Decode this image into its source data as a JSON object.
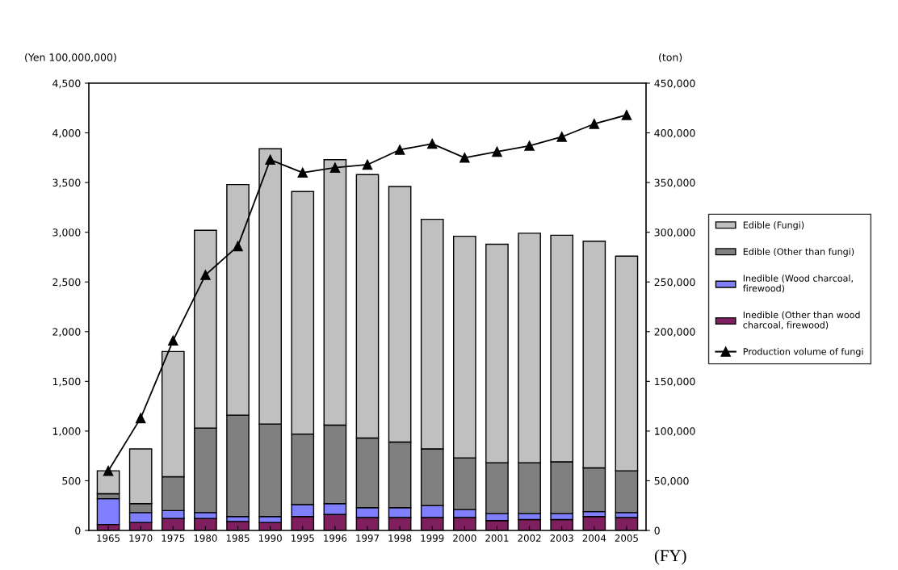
{
  "chart_data": {
    "type": "bar",
    "stacked": true,
    "ylabel": "(Yen 100,000,000)",
    "y2label": "(ton)",
    "xlabel": "(FY)",
    "categories": [
      "1965",
      "1970",
      "1975",
      "1980",
      "1985",
      "1990",
      "1995",
      "1996",
      "1997",
      "1998",
      "1999",
      "2000",
      "2001",
      "2002",
      "2003",
      "2004",
      "2005"
    ],
    "series": [
      {
        "name": "Inedible (Other than wood\ncharcoal, firewood)",
        "color": "#7f1f5f",
        "values": [
          60,
          80,
          120,
          120,
          90,
          80,
          140,
          160,
          130,
          130,
          130,
          130,
          100,
          110,
          110,
          140,
          130
        ]
      },
      {
        "name": "Inedible (Wood charcoal,\nfirewood)",
        "color": "#8080ff",
        "values": [
          260,
          100,
          80,
          60,
          50,
          60,
          120,
          110,
          100,
          100,
          120,
          80,
          70,
          60,
          60,
          50,
          50
        ]
      },
      {
        "name": "Edible (Other than fungi)",
        "color": "#808080",
        "values": [
          50,
          90,
          340,
          850,
          1020,
          930,
          710,
          790,
          700,
          660,
          570,
          520,
          510,
          510,
          520,
          440,
          420
        ]
      },
      {
        "name": "Edible (Fungi)",
        "color": "#c0c0c0",
        "values": [
          230,
          550,
          1260,
          1990,
          2320,
          2770,
          2440,
          2670,
          2650,
          2570,
          2310,
          2230,
          2200,
          2310,
          2280,
          2280,
          2160
        ]
      },
      {
        "name": "Production volume of fungi",
        "type": "line",
        "axis": "y2",
        "color": "#000000",
        "marker": "triangle",
        "line_style": "solid",
        "values": [
          60000,
          113000,
          191000,
          257000,
          286000,
          373000,
          360000,
          365000,
          368000,
          383000,
          389000,
          375000,
          381000,
          387000,
          396000,
          409000,
          418000
        ]
      }
    ],
    "ylim": [
      0,
      4500
    ],
    "yticks": [
      0,
      {
        "value": 500,
        "label": "500"
      },
      {
        "value": 1000,
        "label": "1,000"
      },
      {
        "value": 1500,
        "label": "1,500"
      },
      {
        "value": 2000,
        "label": "2,000"
      },
      {
        "value": 2500,
        "label": "2,500"
      },
      {
        "value": 3000,
        "label": "3,000"
      },
      {
        "value": 3500,
        "label": "3,500"
      },
      {
        "value": 4000,
        "label": "4,000"
      },
      {
        "value": 4500,
        "label": "4,500"
      }
    ],
    "y2lim": [
      0,
      450000
    ],
    "y2ticks": [
      0,
      {
        "value": 50000,
        "label": "50,000"
      },
      {
        "value": 100000,
        "label": "100,000"
      },
      {
        "value": 150000,
        "label": "150,000"
      },
      {
        "value": 200000,
        "label": "200,000"
      },
      {
        "value": 250000,
        "label": "250,000"
      },
      {
        "value": 300000,
        "label": "300,000"
      },
      {
        "value": 350000,
        "label": "350,000"
      },
      {
        "value": 400000,
        "label": "400,000"
      },
      {
        "value": 450000,
        "label": "450,000"
      }
    ],
    "grid": false,
    "legend": "right"
  }
}
